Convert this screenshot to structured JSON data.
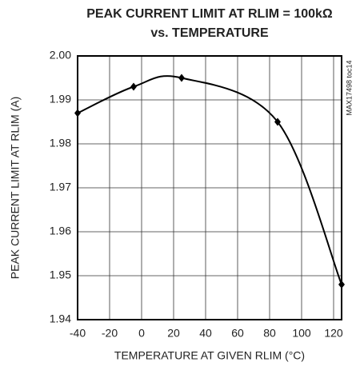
{
  "chart_data": {
    "type": "line",
    "title": [
      "PEAK CURRENT LIMIT AT RLIM = 100kΩ",
      "vs. TEMPERATURE"
    ],
    "xlabel": "TEMPERATURE AT GIVEN RLIM (°C)",
    "ylabel": "PEAK CURRENT LIMIT AT RLIM (A)",
    "note": "MAX17498 toc14",
    "x": [
      -40,
      -5,
      25,
      85,
      125
    ],
    "series": [
      {
        "name": "peak current limit",
        "color": "#000000",
        "values": [
          1.987,
          1.993,
          1.995,
          1.985,
          1.948
        ]
      }
    ],
    "xlim": [
      -40,
      125
    ],
    "xticks": [
      -40,
      -20,
      0,
      20,
      40,
      60,
      80,
      100,
      120
    ],
    "ylim": [
      1.94,
      2.0
    ],
    "yticks": [
      {
        "value": 1.94,
        "label": "1.94"
      },
      {
        "value": 1.95,
        "label": "1.95"
      },
      {
        "value": 1.96,
        "label": "1.96"
      },
      {
        "value": 1.97,
        "label": "1.97"
      },
      {
        "value": 1.98,
        "label": "1.98"
      },
      {
        "value": 1.99,
        "label": "1.99"
      },
      {
        "value": 2.0,
        "label": "2.00"
      }
    ],
    "grid": true
  }
}
